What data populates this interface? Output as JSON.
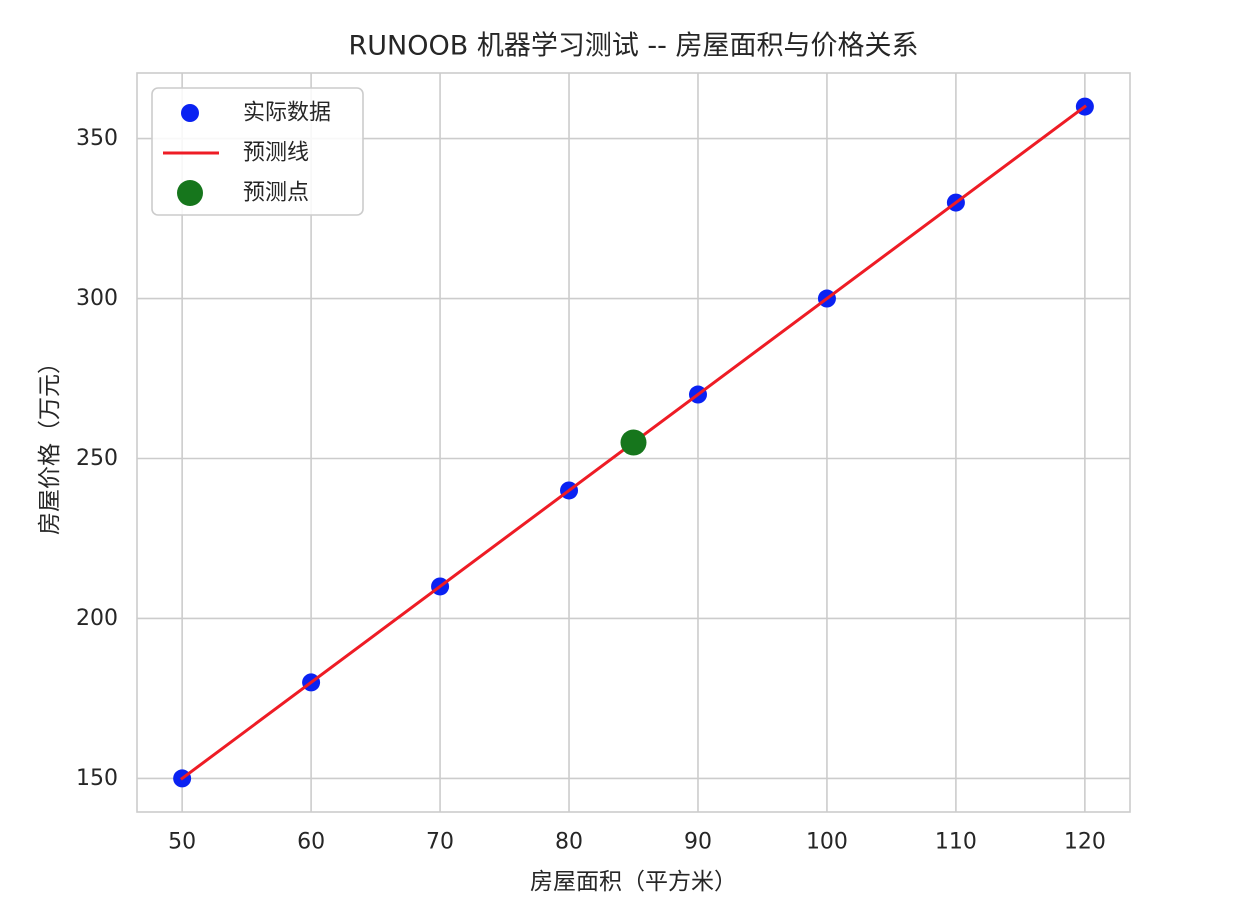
{
  "chart_data": {
    "type": "scatter",
    "title": "RUNOOB 机器学习测试 -- 房屋面积与价格关系",
    "xlabel": "房屋面积（平方米）",
    "ylabel": "房屋价格（万元）",
    "xlim": [
      46.5,
      123.5
    ],
    "ylim": [
      139.5,
      370.5
    ],
    "xticks": [
      50,
      60,
      70,
      80,
      90,
      100,
      110,
      120
    ],
    "yticks": [
      150,
      200,
      250,
      300,
      350
    ],
    "grid": true,
    "legend_position": "upper left",
    "series": [
      {
        "name": "实际数据",
        "type": "scatter",
        "color": "#0a22f2",
        "x": [
          50,
          60,
          70,
          80,
          90,
          100,
          110,
          120
        ],
        "y": [
          150,
          180,
          210,
          240,
          270,
          300,
          330,
          360
        ]
      },
      {
        "name": "预测线",
        "type": "line",
        "color": "#ee1c25",
        "x": [
          50,
          120
        ],
        "y": [
          150,
          360
        ]
      },
      {
        "name": "预测点",
        "type": "scatter",
        "color": "#16761c",
        "x": [
          85
        ],
        "y": [
          255
        ]
      }
    ]
  }
}
